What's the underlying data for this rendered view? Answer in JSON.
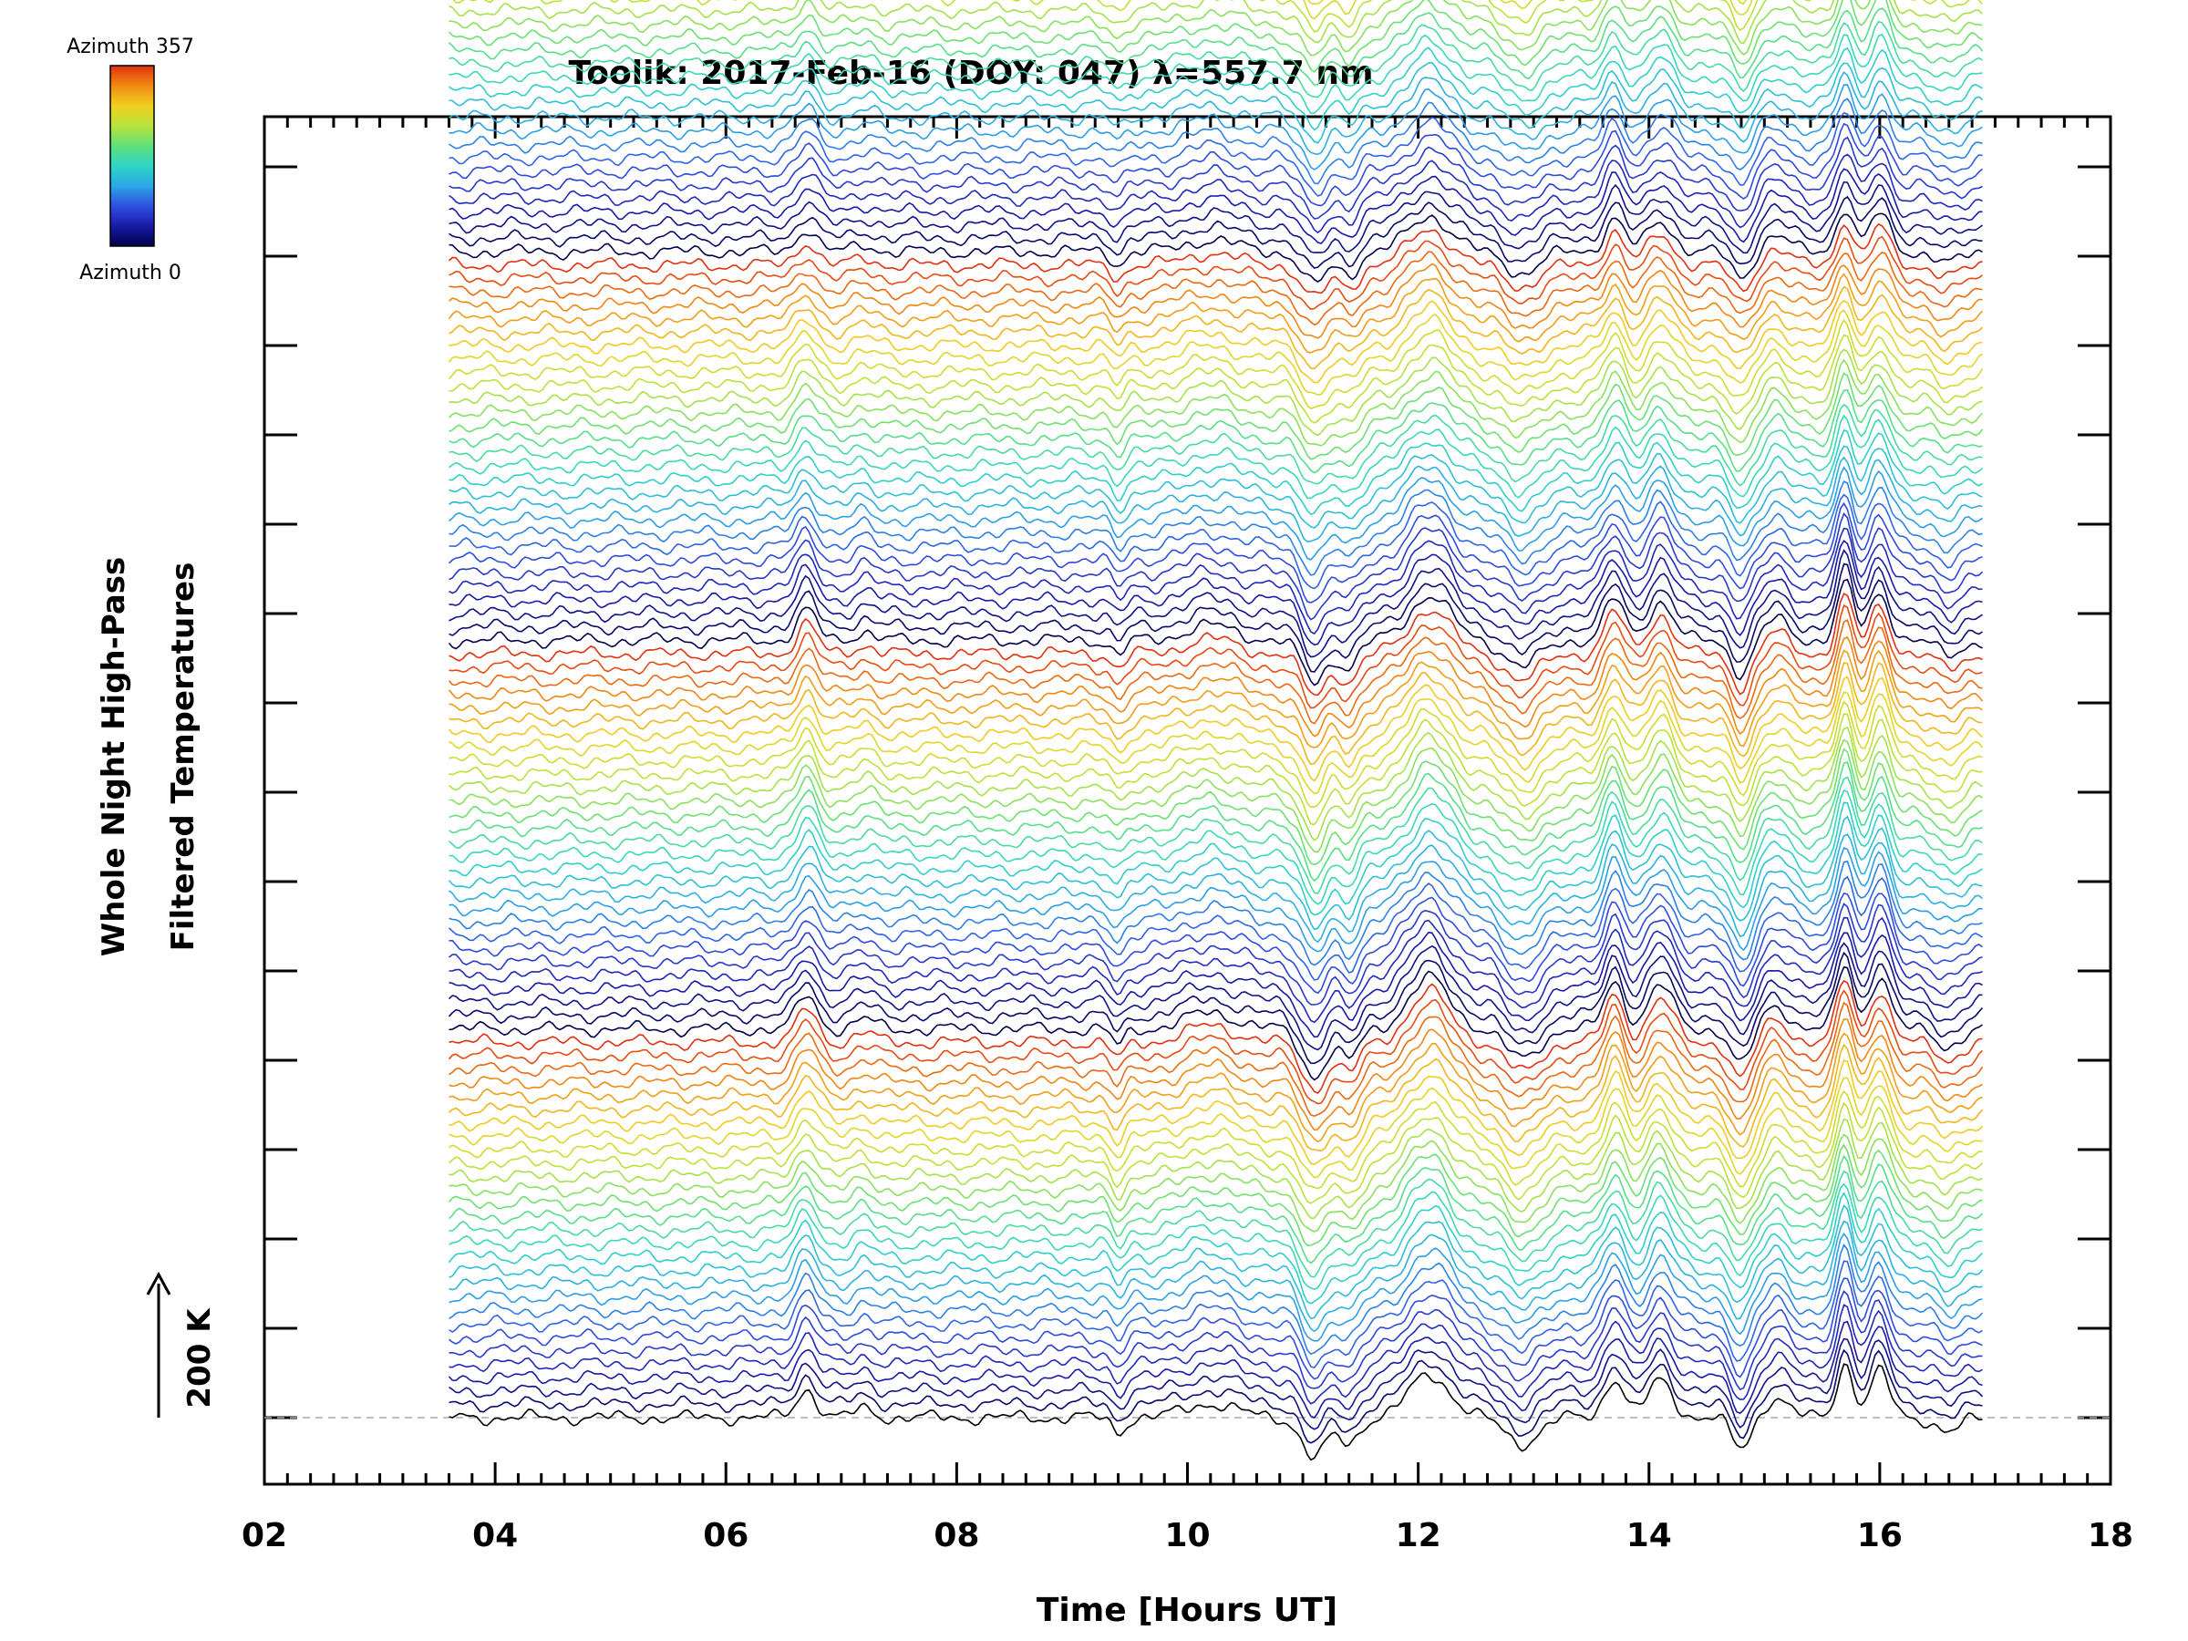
{
  "chart_data": {
    "type": "line",
    "title": "Toolik: 2017-Feb-16 (DOY: 047) λ=557.7 nm",
    "xlabel": "Time [Hours UT]",
    "ylabel_line1": "Whole Night High-Pass",
    "ylabel_line2": "Filtered Temperatures",
    "xlim": [
      2,
      18
    ],
    "x_ticks": [
      "02",
      "04",
      "06",
      "08",
      "10",
      "12",
      "14",
      "16",
      "18"
    ],
    "data_time_range": [
      3.6,
      16.9
    ],
    "scale_label": "200 K",
    "scale_value_K": 200,
    "colorbar_top_label": "Azimuth 357",
    "colorbar_bottom_label": "Azimuth 0",
    "azimuth_range": [
      0,
      357
    ],
    "num_traces": 116,
    "trace_offset_K": 20,
    "features": [
      {
        "t": 6.7,
        "amp": 50,
        "w": 0.12
      },
      {
        "t": 7.2,
        "amp": 15,
        "w": 0.12
      },
      {
        "t": 9.4,
        "amp": -25,
        "w": 0.08
      },
      {
        "t": 10.2,
        "amp": 25,
        "w": 0.3
      },
      {
        "t": 11.1,
        "amp": -70,
        "w": 0.15
      },
      {
        "t": 11.4,
        "amp": -45,
        "w": 0.12
      },
      {
        "t": 12.1,
        "amp": 75,
        "w": 0.25
      },
      {
        "t": 12.9,
        "amp": -45,
        "w": 0.2
      },
      {
        "t": 13.7,
        "amp": 70,
        "w": 0.12
      },
      {
        "t": 14.1,
        "amp": 65,
        "w": 0.15
      },
      {
        "t": 14.8,
        "amp": -55,
        "w": 0.12
      },
      {
        "t": 15.1,
        "amp": 35,
        "w": 0.15
      },
      {
        "t": 15.7,
        "amp": 95,
        "w": 0.1
      },
      {
        "t": 16.0,
        "amp": 80,
        "w": 0.12
      },
      {
        "t": 16.6,
        "amp": -25,
        "w": 0.15
      }
    ],
    "colors": {
      "frame": "#000000",
      "baseline": "#aaaaaa",
      "colormap": [
        "#00004a",
        "#1a1aa8",
        "#2f4fe0",
        "#2aa7e6",
        "#2fd6c6",
        "#5fe07a",
        "#b8e33c",
        "#f0d020",
        "#f08a10",
        "#e03010"
      ]
    }
  }
}
